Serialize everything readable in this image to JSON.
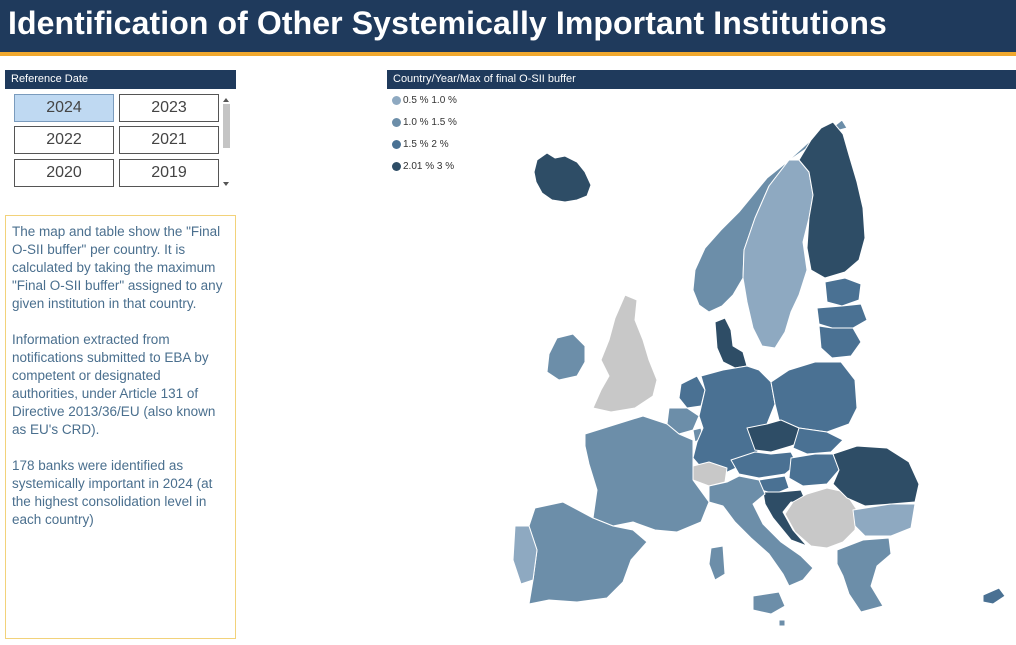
{
  "header": {
    "title": "Identification of Other Systemically Important Institutions"
  },
  "slicer": {
    "title": "Reference Date",
    "selected": "2024",
    "years": [
      "2024",
      "2023",
      "2022",
      "2021",
      "2020",
      "2019"
    ]
  },
  "info": {
    "paragraph1": "The map and table show the \"Final O-SII buffer\" per country. It is calculated by taking the maximum \"Final O-SII buffer\" assigned to any given institution in that country.",
    "paragraph2": "Information extracted from notifications submitted to EBA by competent or designated authorities, under Article 131 of Directive 2013/36/EU (also known as EU's CRD).",
    "paragraph3": "178 banks were identified as systemically important in 2024 (at the highest consolidation level in each country)"
  },
  "map": {
    "title": "Country/Year/Max of final O-SII buffer",
    "legend": [
      {
        "label": "0.5 % 1.0 %",
        "color": "#8ea9c1"
      },
      {
        "label": "1.0 % 1.5 %",
        "color": "#6c8ea9"
      },
      {
        "label": "1.5 % 2 %",
        "color": "#4a7193"
      },
      {
        "label": "2.01 % 3 %",
        "color": "#2e4d66"
      }
    ],
    "no_data_color": "#c8c8c8",
    "countries": [
      {
        "name": "Iceland",
        "band": 3
      },
      {
        "name": "Norway",
        "band": 1
      },
      {
        "name": "Sweden",
        "band": 0
      },
      {
        "name": "Finland",
        "band": 3
      },
      {
        "name": "Estonia",
        "band": 2
      },
      {
        "name": "Latvia",
        "band": 2
      },
      {
        "name": "Lithuania",
        "band": 2
      },
      {
        "name": "Denmark",
        "band": 3
      },
      {
        "name": "Ireland",
        "band": 1
      },
      {
        "name": "United Kingdom",
        "band": -1
      },
      {
        "name": "Netherlands",
        "band": 2
      },
      {
        "name": "Belgium",
        "band": 1
      },
      {
        "name": "Luxembourg",
        "band": 1
      },
      {
        "name": "Germany",
        "band": 2
      },
      {
        "name": "Poland",
        "band": 2
      },
      {
        "name": "Czechia",
        "band": 3
      },
      {
        "name": "Slovakia",
        "band": 2
      },
      {
        "name": "Austria",
        "band": 2
      },
      {
        "name": "Switzerland",
        "band": -1
      },
      {
        "name": "Hungary",
        "band": 2
      },
      {
        "name": "Slovenia",
        "band": 2
      },
      {
        "name": "Croatia",
        "band": 3
      },
      {
        "name": "Romania",
        "band": 3
      },
      {
        "name": "Bulgaria",
        "band": 0
      },
      {
        "name": "Greece",
        "band": 1
      },
      {
        "name": "Cyprus",
        "band": 2
      },
      {
        "name": "Italy",
        "band": 1
      },
      {
        "name": "France",
        "band": 1
      },
      {
        "name": "Spain",
        "band": 1
      },
      {
        "name": "Portugal",
        "band": 0
      },
      {
        "name": "Malta",
        "band": 1
      },
      {
        "name": "Balkans",
        "band": -1
      }
    ]
  }
}
